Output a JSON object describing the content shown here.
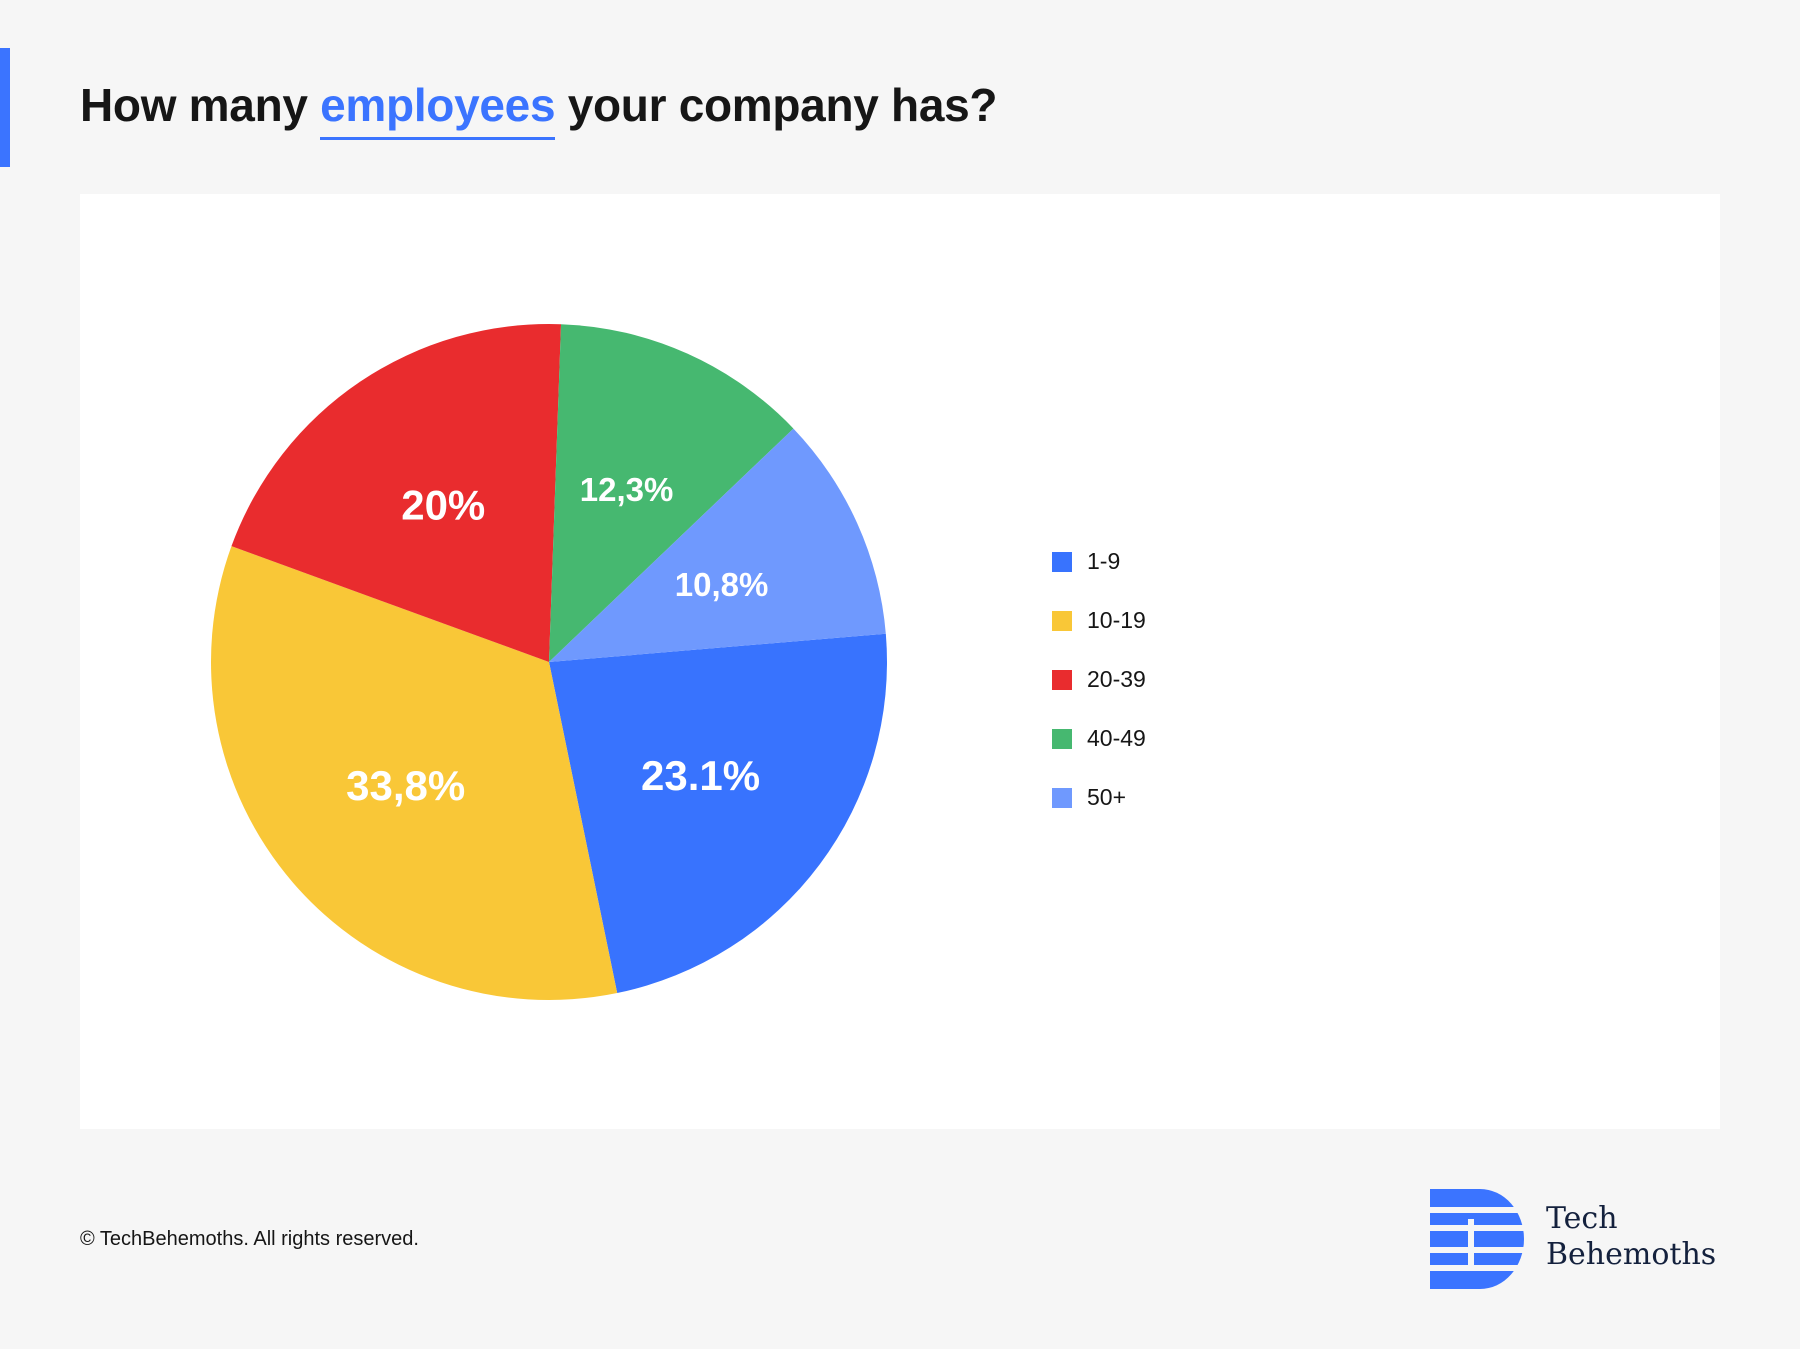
{
  "header": {
    "title_before": "How many ",
    "title_highlight": "employees",
    "title_after": " your company has?"
  },
  "colors": {
    "accent": "#3b74ff",
    "series": [
      "#3873fe",
      "#f9c737",
      "#e92c2e",
      "#46b870",
      "#6f99fe"
    ]
  },
  "chart_data": {
    "type": "pie",
    "title": "How many employees your company has?",
    "categories": [
      "1-9",
      "10-19",
      "20-39",
      "40-49",
      "50+"
    ],
    "values": [
      23.1,
      33.8,
      20.0,
      12.3,
      10.8
    ],
    "data_labels": [
      "23.1%",
      "33,8%",
      "20%",
      "12,3%",
      "10,8%"
    ],
    "legend_position": "right"
  },
  "footer": {
    "copyright": "© TechBehemoths. All rights reserved.",
    "logo_line1": "Tech",
    "logo_line2": "Behemoths"
  }
}
